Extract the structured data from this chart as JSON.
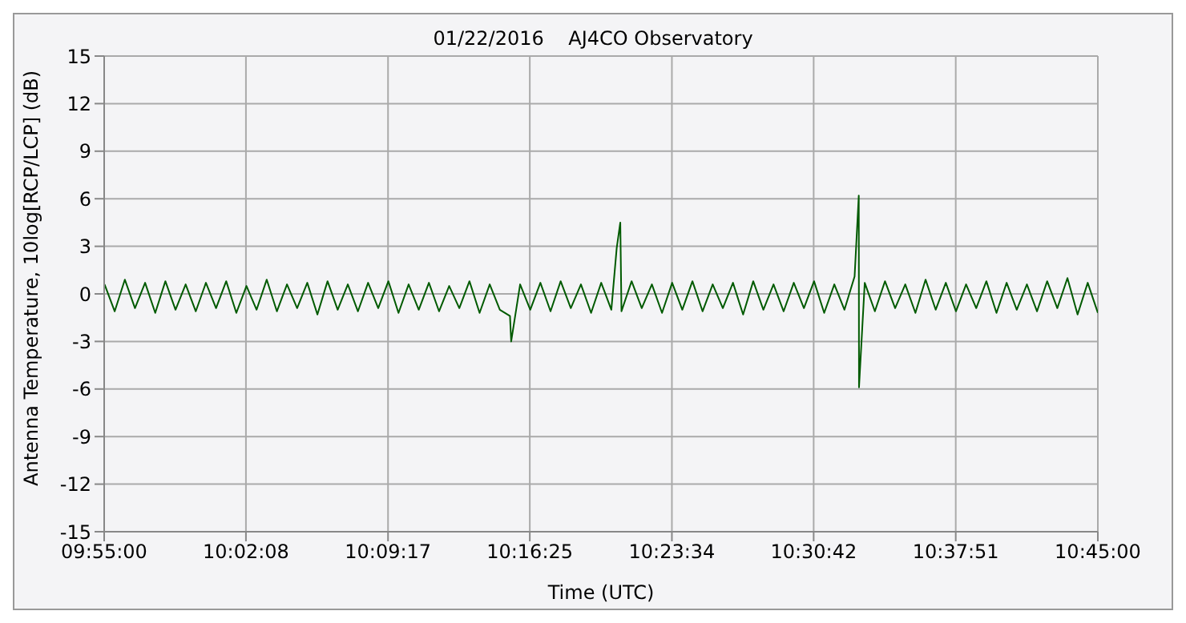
{
  "chart_data": {
    "type": "line",
    "title": "01/22/2016    AJ4CO Observatory",
    "xlabel": "Time (UTC)",
    "ylabel": "Antenna Temperature, 10log[RCP/LCP] (dB)",
    "x": [
      9.917,
      9.9255,
      9.934,
      9.9425,
      9.951,
      9.9595,
      9.968,
      9.9765,
      9.985,
      9.9935,
      10.002,
      10.0105,
      10.019,
      10.0275,
      10.036,
      10.0445,
      10.053,
      10.0615,
      10.07,
      10.0785,
      10.087,
      10.0955,
      10.104,
      10.1125,
      10.121,
      10.1295,
      10.138,
      10.1465,
      10.155,
      10.1635,
      10.172,
      10.1805,
      10.189,
      10.1975,
      10.206,
      10.2145,
      10.223,
      10.2315,
      10.24,
      10.2485,
      10.257,
      10.258,
      10.2655,
      10.274,
      10.2825,
      10.291,
      10.2995,
      10.308,
      10.3165,
      10.325,
      10.3335,
      10.342,
      10.3465,
      10.3495,
      10.3505,
      10.359,
      10.3675,
      10.376,
      10.3845,
      10.393,
      10.4015,
      10.41,
      10.4185,
      10.427,
      10.4355,
      10.444,
      10.4525,
      10.461,
      10.4695,
      10.478,
      10.4865,
      10.495,
      10.5035,
      10.512,
      10.5205,
      10.529,
      10.5375,
      10.546,
      10.5495,
      10.5497,
      10.5545,
      10.563,
      10.5715,
      10.58,
      10.5885,
      10.597,
      10.6055,
      10.614,
      10.6225,
      10.631,
      10.6395,
      10.648,
      10.6565,
      10.665,
      10.6735,
      10.682,
      10.6905,
      10.699,
      10.7075,
      10.716,
      10.7245,
      10.733,
      10.7415,
      10.75
    ],
    "series": [
      {
        "color": "#005a00",
        "values": [
          0.6,
          -1.1,
          0.9,
          -0.9,
          0.7,
          -1.2,
          0.8,
          -1.0,
          0.6,
          -1.1,
          0.7,
          -0.9,
          0.8,
          -1.2,
          0.5,
          -1.0,
          0.9,
          -1.1,
          0.6,
          -0.9,
          0.7,
          -1.3,
          0.8,
          -1.0,
          0.6,
          -1.1,
          0.7,
          -0.9,
          0.8,
          -1.2,
          0.6,
          -1.0,
          0.7,
          -1.1,
          0.5,
          -0.9,
          0.8,
          -1.2,
          0.6,
          -1.0,
          -1.4,
          -3.0,
          0.6,
          -1.0,
          0.7,
          -1.1,
          0.8,
          -0.9,
          0.6,
          -1.2,
          0.7,
          -1.0,
          2.9,
          4.5,
          -1.1,
          0.8,
          -0.9,
          0.6,
          -1.2,
          0.7,
          -1.0,
          0.8,
          -1.1,
          0.6,
          -0.9,
          0.7,
          -1.3,
          0.8,
          -1.0,
          0.6,
          -1.1,
          0.7,
          -0.9,
          0.8,
          -1.2,
          0.6,
          -1.0,
          1.1,
          6.2,
          -5.9,
          0.7,
          -1.1,
          0.8,
          -0.9,
          0.6,
          -1.2,
          0.9,
          -1.0,
          0.7,
          -1.1,
          0.6,
          -0.9,
          0.8,
          -1.2,
          0.7,
          -1.0,
          0.6,
          -1.1,
          0.8,
          -0.9,
          1.0,
          -1.3,
          0.7,
          -1.2
        ]
      }
    ],
    "xlim": [
      9.91667,
      10.75
    ],
    "xticks": [
      {
        "value": 9.91667,
        "label": "09:55:00"
      },
      {
        "value": 10.03556,
        "label": "10:02:08"
      },
      {
        "value": 10.15472,
        "label": "10:09:17"
      },
      {
        "value": 10.27361,
        "label": "10:16:25"
      },
      {
        "value": 10.39278,
        "label": "10:23:34"
      },
      {
        "value": 10.51167,
        "label": "10:30:42"
      },
      {
        "value": 10.63083,
        "label": "10:37:51"
      },
      {
        "value": 10.75,
        "label": "10:45:00"
      }
    ],
    "ylim": [
      -15,
      15
    ],
    "yticks": [
      -15,
      -12,
      -9,
      -6,
      -3,
      0,
      3,
      6,
      9,
      12,
      15
    ],
    "grid": true
  }
}
